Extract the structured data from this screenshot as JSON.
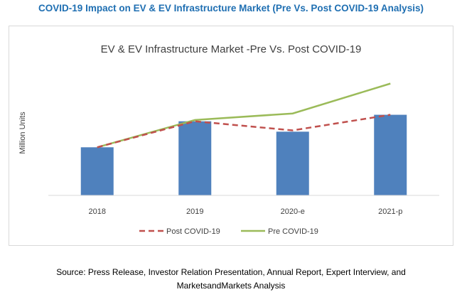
{
  "header": {
    "title": "COVID-19 Impact on EV & EV Infrastructure Market (Pre Vs. Post COVID-19 Analysis)"
  },
  "footer": {
    "source_line1": "Source: Press Release, Investor Relation Presentation, Annual Report, Expert Interview, and",
    "source_line2": "MarketsandMarkets Analysis"
  },
  "chart_data": {
    "type": "bar",
    "title": "EV & EV Infrastructure Market -Pre Vs. Post COVID-19",
    "xlabel": "",
    "ylabel": "Million Units",
    "categories": [
      "2018",
      "2019",
      "2020-e",
      "2021-p"
    ],
    "ylim": [
      0,
      100
    ],
    "grid": false,
    "legend_position": "bottom",
    "bars": {
      "values": [
        37,
        57,
        49,
        62
      ],
      "color": "#4f81bd"
    },
    "series": [
      {
        "name": "Post COVID-19",
        "type": "line",
        "style": "dashed",
        "color": "#c0504d",
        "values": [
          37,
          57,
          50,
          62
        ]
      },
      {
        "name": "Pre COVID-19",
        "type": "line",
        "style": "solid",
        "color": "#9bbb59",
        "values": [
          37,
          58,
          63,
          86
        ]
      }
    ]
  }
}
